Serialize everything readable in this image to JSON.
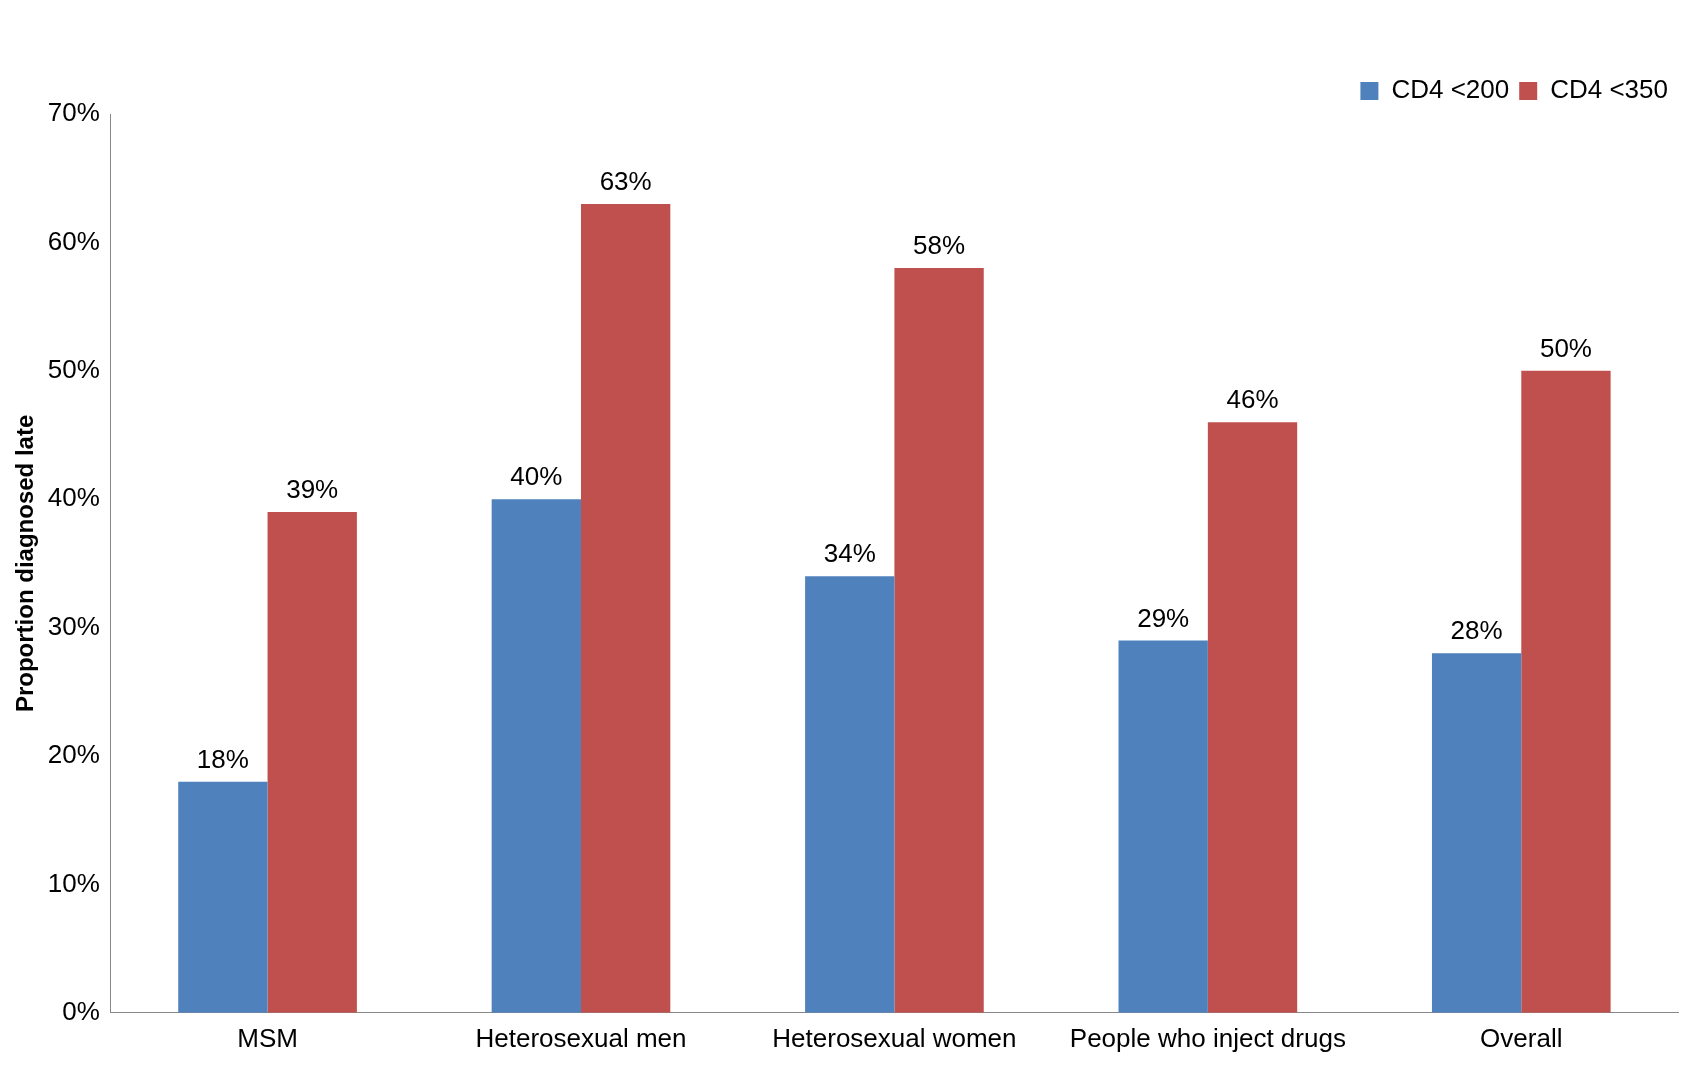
{
  "chart_data": {
    "type": "bar",
    "ylabel": "Proportion diagnosed late",
    "categories": [
      "MSM",
      "Heterosexual men",
      "Heterosexual women",
      "People who inject drugs",
      "Overall"
    ],
    "series": [
      {
        "name": "CD4 <200",
        "color": "#4f81bd",
        "values": [
          18,
          40,
          34,
          29,
          28
        ],
        "value_labels": [
          "18%",
          "40%",
          "34%",
          "29%",
          "28%"
        ]
      },
      {
        "name": "CD4 <350",
        "color": "#c0504d",
        "values": [
          39,
          63,
          58,
          46,
          50
        ],
        "value_labels": [
          "39%",
          "63%",
          "58%",
          "46%",
          "50%"
        ]
      }
    ],
    "ylim": [
      0,
      70
    ],
    "yticks": [
      {
        "value": 0,
        "label": "0%"
      },
      {
        "value": 10,
        "label": "10%"
      },
      {
        "value": 20,
        "label": "20%"
      },
      {
        "value": 30,
        "label": "30%"
      },
      {
        "value": 40,
        "label": "40%"
      },
      {
        "value": 50,
        "label": "50%"
      },
      {
        "value": 60,
        "label": "60%"
      },
      {
        "value": 70,
        "label": "70%"
      }
    ],
    "grid": false,
    "legend": "top right"
  }
}
